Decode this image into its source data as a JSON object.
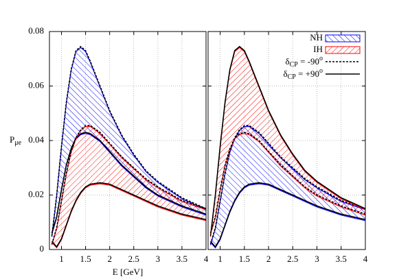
{
  "chart_data": [
    {
      "type": "band",
      "ylabel": {
        "main": "P",
        "sub": "μe"
      },
      "xlabel": "E [GeV]",
      "x": [
        0.8,
        0.9,
        1.0,
        1.1,
        1.2,
        1.3,
        1.4,
        1.5,
        1.6,
        1.8,
        2.0,
        2.25,
        2.5,
        2.75,
        3.0,
        3.5,
        4.0
      ],
      "xlim": [
        0.75,
        4
      ],
      "ylim": [
        0,
        0.08
      ],
      "xticks": [
        1,
        1.5,
        2,
        2.5,
        3,
        3.5,
        4
      ],
      "yticks": [
        0,
        0.02,
        0.04,
        0.06,
        0.08
      ],
      "ytick_labels": true,
      "grid": true,
      "series": [
        {
          "name": "NH",
          "color": "#0000ff",
          "hatch": "back",
          "curves": [
            {
              "line": 0,
              "values": [
                0.005,
                0.02,
                0.038,
                0.054,
                0.066,
                0.073,
                0.0745,
                0.073,
                0.069,
                0.06,
                0.051,
                0.042,
                0.035,
                0.029,
                0.025,
                0.019,
                0.015
              ]
            },
            {
              "line": 1,
              "values": [
                0.006,
                0.012,
                0.022,
                0.031,
                0.037,
                0.041,
                0.0425,
                0.043,
                0.0425,
                0.04,
                0.036,
                0.031,
                0.027,
                0.023,
                0.02,
                0.016,
                0.013
              ]
            }
          ]
        },
        {
          "name": "IH",
          "color": "#ff0000",
          "hatch": "forward",
          "curves": [
            {
              "line": 0,
              "values": [
                0.002,
                0.008,
                0.018,
                0.028,
                0.036,
                0.041,
                0.044,
                0.0455,
                0.0455,
                0.043,
                0.039,
                0.034,
                0.03,
                0.026,
                0.023,
                0.018,
                0.015
              ]
            },
            {
              "line": 1,
              "values": [
                0.003,
                0.001,
                0.004,
                0.009,
                0.014,
                0.018,
                0.021,
                0.023,
                0.024,
                0.0245,
                0.024,
                0.022,
                0.02,
                0.018,
                0.016,
                0.013,
                0.011
              ]
            }
          ]
        }
      ],
      "lines": [
        {
          "label": {
            "symbol": "δ",
            "sub": "CP",
            "text": " = -90",
            "sup": "o"
          },
          "dash": "3,2"
        },
        {
          "label": {
            "symbol": "δ",
            "sub": "CP",
            "text": " = +90",
            "sup": "o"
          },
          "dash": "none"
        }
      ]
    },
    {
      "type": "band",
      "x": [
        0.8,
        0.9,
        1.0,
        1.1,
        1.2,
        1.3,
        1.4,
        1.5,
        1.6,
        1.8,
        2.0,
        2.25,
        2.5,
        2.75,
        3.0,
        3.5,
        4.0
      ],
      "xlim": [
        0.75,
        4
      ],
      "ylim": [
        0,
        0.08
      ],
      "xticks": [
        1,
        1.5,
        2,
        2.5,
        3,
        3.5,
        4
      ],
      "yticks": [
        0,
        0.02,
        0.04,
        0.06,
        0.08
      ],
      "ytick_labels": false,
      "grid": true,
      "legend": "upper right",
      "series": [
        {
          "name": "NH",
          "color": "#0000ff",
          "hatch": "back",
          "curves": [
            {
              "line": 0,
              "values": [
                0.002,
                0.008,
                0.018,
                0.028,
                0.036,
                0.041,
                0.044,
                0.0455,
                0.0455,
                0.043,
                0.039,
                0.034,
                0.03,
                0.026,
                0.023,
                0.018,
                0.015
              ]
            },
            {
              "line": 1,
              "values": [
                0.003,
                0.001,
                0.004,
                0.009,
                0.014,
                0.018,
                0.021,
                0.023,
                0.024,
                0.0245,
                0.024,
                0.022,
                0.02,
                0.018,
                0.016,
                0.013,
                0.011
              ]
            }
          ]
        },
        {
          "name": "IH",
          "color": "#ff0000",
          "hatch": "forward",
          "curves": [
            {
              "line": 1,
              "values": [
                0.005,
                0.02,
                0.038,
                0.054,
                0.066,
                0.073,
                0.0745,
                0.073,
                0.069,
                0.06,
                0.051,
                0.042,
                0.035,
                0.029,
                0.025,
                0.019,
                0.015
              ]
            },
            {
              "line": 0,
              "values": [
                0.006,
                0.012,
                0.022,
                0.031,
                0.037,
                0.041,
                0.0425,
                0.043,
                0.0425,
                0.04,
                0.036,
                0.031,
                0.027,
                0.023,
                0.02,
                0.016,
                0.013
              ]
            }
          ]
        }
      ],
      "lines": [
        {
          "label": {
            "symbol": "δ",
            "sub": "CP",
            "text": " = -90",
            "sup": "o"
          },
          "dash": "3,2"
        },
        {
          "label": {
            "symbol": "δ",
            "sub": "CP",
            "text": " = +90",
            "sup": "o"
          },
          "dash": "none"
        }
      ]
    }
  ]
}
